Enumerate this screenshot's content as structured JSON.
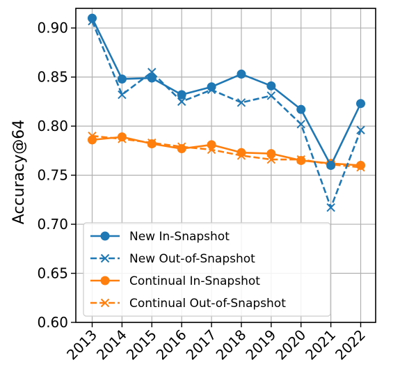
{
  "chart_data": {
    "type": "line",
    "title": "",
    "xlabel": "",
    "ylabel": "Accuracy@64",
    "categories": [
      "2013",
      "2014",
      "2015",
      "2016",
      "2017",
      "2018",
      "2019",
      "2020",
      "2021",
      "2022"
    ],
    "ylim": [
      0.6,
      0.92
    ],
    "yticks": [
      "0.60",
      "0.65",
      "0.70",
      "0.75",
      "0.80",
      "0.85",
      "0.90"
    ],
    "grid": true,
    "legend_position": "bottom-left",
    "series": [
      {
        "name": "New In-Snapshot",
        "color": "#1f77b4",
        "linestyle": "solid",
        "marker": "circle",
        "values": [
          0.91,
          0.848,
          0.849,
          0.832,
          0.84,
          0.853,
          0.841,
          0.817,
          0.76,
          0.823
        ]
      },
      {
        "name": "New Out-of-Snapshot",
        "color": "#1f77b4",
        "linestyle": "dashed",
        "marker": "x",
        "values": [
          0.907,
          0.832,
          0.855,
          0.825,
          0.837,
          0.824,
          0.831,
          0.802,
          0.717,
          0.796
        ]
      },
      {
        "name": "Continual In-Snapshot",
        "color": "#ff7f0e",
        "linestyle": "solid",
        "marker": "circle",
        "values": [
          0.786,
          0.789,
          0.782,
          0.777,
          0.781,
          0.773,
          0.772,
          0.765,
          0.762,
          0.76
        ]
      },
      {
        "name": "Continual Out-of-Snapshot",
        "color": "#ff7f0e",
        "linestyle": "dashed",
        "marker": "x",
        "values": [
          0.79,
          0.787,
          0.783,
          0.779,
          0.776,
          0.77,
          0.766,
          0.766,
          0.761,
          0.758
        ]
      }
    ]
  }
}
